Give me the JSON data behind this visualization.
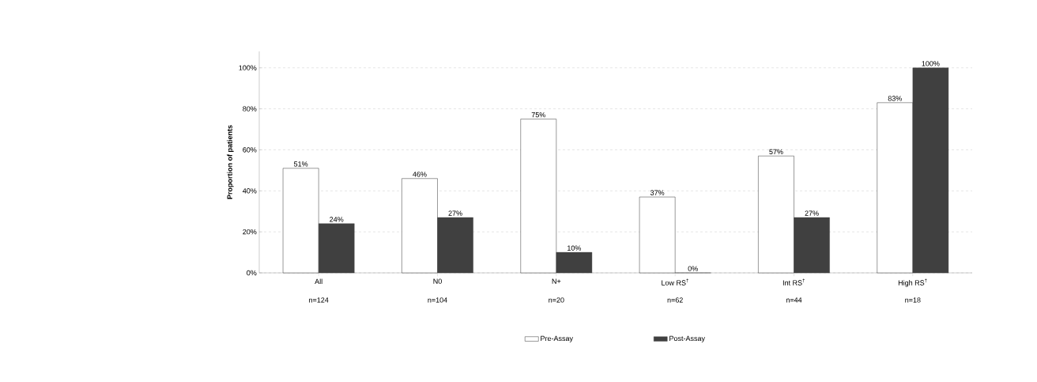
{
  "chart_data": {
    "type": "bar",
    "ylabel": "Proportion of patients",
    "categories": [
      "All",
      "N0",
      "N+",
      "Low RS$^{†}$",
      "Int RS$^{†}$",
      "High RS$^{†}$"
    ],
    "series": [
      {
        "name": "Pre-Assay",
        "color": "#ffffff",
        "values": [
          51,
          46,
          75,
          37,
          57,
          83
        ],
        "value_labels": [
          "51%",
          "46%",
          "75%",
          "37%",
          "57%",
          "83%"
        ]
      },
      {
        "name": "Post-Assay",
        "color": "#404040",
        "values": [
          24,
          27,
          10,
          0,
          27,
          100
        ],
        "value_labels": [
          "24%",
          "27%",
          "10%",
          "0%",
          "27%",
          "100%"
        ]
      }
    ],
    "ylim": [
      0,
      108
    ],
    "yticks": [
      {
        "value": 0,
        "label": "0%"
      },
      {
        "value": 20,
        "label": "20%"
      },
      {
        "value": 40,
        "label": "40%"
      },
      {
        "value": 60,
        "label": "60%"
      },
      {
        "value": 80,
        "label": "80%"
      },
      {
        "value": 100,
        "label": "100%"
      }
    ],
    "annotations": [
      "n=124",
      "n=104",
      "n=20",
      "n=62",
      "n=44",
      "n=18"
    ],
    "grid": "y",
    "legend": "bottom"
  }
}
